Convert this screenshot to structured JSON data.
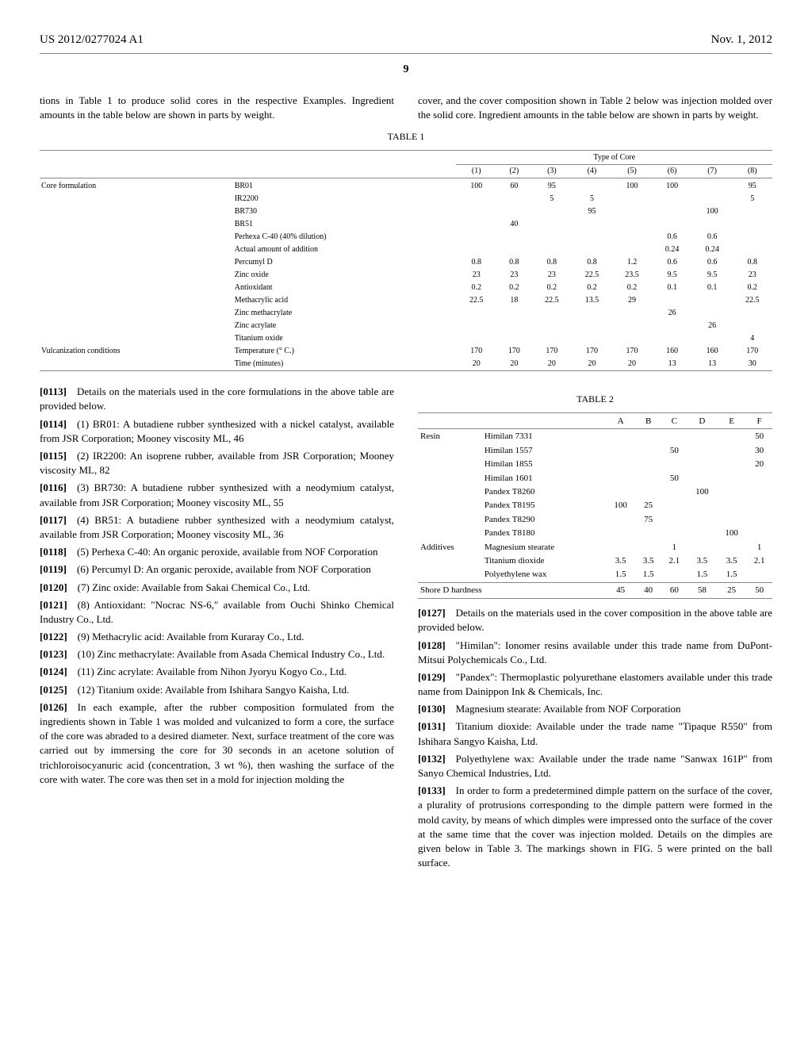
{
  "header": {
    "pub_no": "US 2012/0277024 A1",
    "date": "Nov. 1, 2012",
    "page": "9"
  },
  "top_left_text": "tions in Table 1 to produce solid cores in the respective Examples. Ingredient amounts in the table below are shown in parts by weight.",
  "top_right_text": "cover, and the cover composition shown in Table 2 below was injection molded over the solid core. Ingredient amounts in the table below are shown in parts by weight.",
  "table1": {
    "caption": "TABLE 1",
    "group_header": "Type of Core",
    "col_headers": [
      "(1)",
      "(2)",
      "(3)",
      "(4)",
      "(5)",
      "(6)",
      "(7)",
      "(8)"
    ],
    "row_groups": [
      {
        "label": "Core formulation",
        "rows": [
          {
            "name": "BR01",
            "v": [
              "100",
              "60",
              "95",
              "",
              "100",
              "100",
              "",
              "95"
            ]
          },
          {
            "name": "IR2200",
            "v": [
              "",
              "",
              "5",
              "5",
              "",
              "",
              "",
              "5"
            ]
          },
          {
            "name": "BR730",
            "v": [
              "",
              "",
              "",
              "95",
              "",
              "",
              "100",
              ""
            ]
          },
          {
            "name": "BR51",
            "v": [
              "",
              "40",
              "",
              "",
              "",
              "",
              "",
              ""
            ]
          },
          {
            "name": "Perhexa C-40 (40% dilution)",
            "v": [
              "",
              "",
              "",
              "",
              "",
              "0.6",
              "0.6",
              ""
            ]
          },
          {
            "name": "Actual amount of addition",
            "v": [
              "",
              "",
              "",
              "",
              "",
              "0.24",
              "0.24",
              ""
            ]
          },
          {
            "name": "Percumyl D",
            "v": [
              "0.8",
              "0.8",
              "0.8",
              "0.8",
              "1.2",
              "0.6",
              "0.6",
              "0.8"
            ]
          },
          {
            "name": "Zinc oxide",
            "v": [
              "23",
              "23",
              "23",
              "22.5",
              "23.5",
              "9.5",
              "9.5",
              "23"
            ]
          },
          {
            "name": "Antioxidant",
            "v": [
              "0.2",
              "0.2",
              "0.2",
              "0.2",
              "0.2",
              "0.1",
              "0.1",
              "0.2"
            ]
          },
          {
            "name": "Methacrylic acid",
            "v": [
              "22.5",
              "18",
              "22.5",
              "13.5",
              "29",
              "",
              "",
              "22.5"
            ]
          },
          {
            "name": "Zinc methacrylate",
            "v": [
              "",
              "",
              "",
              "",
              "",
              "26",
              "",
              ""
            ]
          },
          {
            "name": "Zinc acrylate",
            "v": [
              "",
              "",
              "",
              "",
              "",
              "",
              "26",
              ""
            ]
          },
          {
            "name": "Titanium oxide",
            "v": [
              "",
              "",
              "",
              "",
              "",
              "",
              "",
              "4"
            ]
          }
        ]
      },
      {
        "label": "Vulcanization conditions",
        "rows": [
          {
            "name": "Temperature (° C.)",
            "v": [
              "170",
              "170",
              "170",
              "170",
              "170",
              "160",
              "160",
              "170"
            ]
          },
          {
            "name": "Time (minutes)",
            "v": [
              "20",
              "20",
              "20",
              "20",
              "20",
              "13",
              "13",
              "30"
            ]
          }
        ]
      }
    ]
  },
  "left_paras": [
    {
      "num": "[0113]",
      "text": "Details on the materials used in the core formulations in the above table are provided below."
    },
    {
      "num": "[0114]",
      "text": "(1) BR01: A butadiene rubber synthesized with a nickel catalyst, available from JSR Corporation; Mooney viscosity ML, 46"
    },
    {
      "num": "[0115]",
      "text": "(2) IR2200: An isoprene rubber, available from JSR Corporation; Mooney viscosity ML, 82"
    },
    {
      "num": "[0116]",
      "text": "(3) BR730: A butadiene rubber synthesized with a neodymium catalyst, available from JSR Corporation; Mooney viscosity ML, 55"
    },
    {
      "num": "[0117]",
      "text": "(4) BR51: A butadiene rubber synthesized with a neodymium catalyst, available from JSR Corporation; Mooney viscosity ML, 36"
    },
    {
      "num": "[0118]",
      "text": "(5) Perhexa C-40: An organic peroxide, available from NOF Corporation"
    },
    {
      "num": "[0119]",
      "text": "(6) Percumyl D: An organic peroxide, available from NOF Corporation"
    },
    {
      "num": "[0120]",
      "text": "(7) Zinc oxide: Available from Sakai Chemical Co., Ltd."
    },
    {
      "num": "[0121]",
      "text": "(8) Antioxidant: \"Nocrac NS-6,\" available from Ouchi Shinko Chemical Industry Co., Ltd."
    },
    {
      "num": "[0122]",
      "text": "(9) Methacrylic acid: Available from Kuraray Co., Ltd."
    },
    {
      "num": "[0123]",
      "text": "(10) Zinc methacrylate: Available from Asada Chemical Industry Co., Ltd."
    },
    {
      "num": "[0124]",
      "text": "(11) Zinc acrylate: Available from Nihon Jyoryu Kogyo Co., Ltd."
    },
    {
      "num": "[0125]",
      "text": "(12) Titanium oxide: Available from Ishihara Sangyo Kaisha, Ltd."
    },
    {
      "num": "[0126]",
      "text": "In each example, after the rubber composition formulated from the ingredients shown in Table 1 was molded and vulcanized to form a core, the surface of the core was abraded to a desired diameter. Next, surface treatment of the core was carried out by immersing the core for 30 seconds in an acetone solution of trichloroisocyanuric acid (concentration, 3 wt %), then washing the surface of the core with water. The core was then set in a mold for injection molding the"
    }
  ],
  "table2": {
    "caption": "TABLE 2",
    "col_headers": [
      "A",
      "B",
      "C",
      "D",
      "E",
      "F"
    ],
    "row_groups": [
      {
        "label": "Resin",
        "rows": [
          {
            "name": "Himilan 7331",
            "v": [
              "",
              "",
              "",
              "",
              "",
              "50"
            ]
          },
          {
            "name": "Himilan 1557",
            "v": [
              "",
              "",
              "50",
              "",
              "",
              "30"
            ]
          },
          {
            "name": "Himilan 1855",
            "v": [
              "",
              "",
              "",
              "",
              "",
              "20"
            ]
          },
          {
            "name": "Himilan 1601",
            "v": [
              "",
              "",
              "50",
              "",
              "",
              ""
            ]
          },
          {
            "name": "Pandex T8260",
            "v": [
              "",
              "",
              "",
              "100",
              "",
              ""
            ]
          },
          {
            "name": "Pandex T8195",
            "v": [
              "100",
              "25",
              "",
              "",
              "",
              ""
            ]
          },
          {
            "name": "Pandex T8290",
            "v": [
              "",
              "75",
              "",
              "",
              "",
              ""
            ]
          },
          {
            "name": "Pandex T8180",
            "v": [
              "",
              "",
              "",
              "",
              "100",
              ""
            ]
          }
        ]
      },
      {
        "label": "Additives",
        "rows": [
          {
            "name": "Magnesium stearate",
            "v": [
              "",
              "",
              "1",
              "",
              "",
              "1"
            ]
          },
          {
            "name": "Titanium dioxide",
            "v": [
              "3.5",
              "3.5",
              "2.1",
              "3.5",
              "3.5",
              "2.1"
            ]
          },
          {
            "name": "Polyethylene wax",
            "v": [
              "1.5",
              "1.5",
              "",
              "1.5",
              "1.5",
              ""
            ]
          }
        ]
      }
    ],
    "footer": {
      "name": "Shore D hardness",
      "v": [
        "45",
        "40",
        "60",
        "58",
        "25",
        "50"
      ]
    }
  },
  "right_paras": [
    {
      "num": "[0127]",
      "text": "Details on the materials used in the cover composition in the above table are provided below."
    },
    {
      "num": "[0128]",
      "text": "\"Himilan\": Ionomer resins available under this trade name from DuPont-Mitsui Polychemicals Co., Ltd."
    },
    {
      "num": "[0129]",
      "text": "\"Pandex\": Thermoplastic polyurethane elastomers available under this trade name from Dainippon Ink & Chemicals, Inc."
    },
    {
      "num": "[0130]",
      "text": "Magnesium stearate: Available from NOF Corporation"
    },
    {
      "num": "[0131]",
      "text": "Titanium dioxide: Available under the trade name \"Tipaque R550\" from Ishihara Sangyo Kaisha, Ltd."
    },
    {
      "num": "[0132]",
      "text": "Polyethylene wax: Available under the trade name \"Sanwax 161P\" from Sanyo Chemical Industries, Ltd."
    },
    {
      "num": "[0133]",
      "text": "In order to form a predetermined dimple pattern on the surface of the cover, a plurality of protrusions corresponding to the dimple pattern were formed in the mold cavity, by means of which dimples were impressed onto the surface of the cover at the same time that the cover was injection molded. Details on the dimples are given below in Table 3. The markings shown in FIG. 5 were printed on the ball surface."
    }
  ]
}
